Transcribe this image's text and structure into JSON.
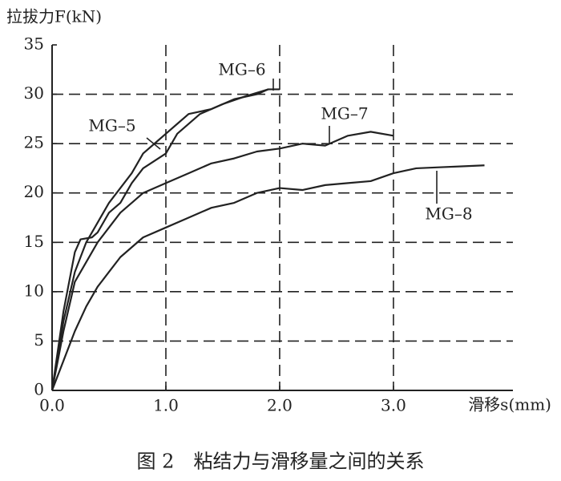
{
  "chart_data": {
    "type": "line",
    "ylabel": "拉拔力F(kN)",
    "xlabel": "滑移s(mm)",
    "caption": "图 2　粘结力与滑移量之间的关系",
    "xlim": [
      0,
      4.05
    ],
    "ylim": [
      0,
      35
    ],
    "xticks": [
      {
        "value": 0,
        "label": "0.0"
      },
      {
        "value": 1,
        "label": "1.0"
      },
      {
        "value": 2,
        "label": "2.0"
      },
      {
        "value": 3,
        "label": "3.0"
      }
    ],
    "yticks": [
      0,
      5,
      10,
      15,
      20,
      25,
      30,
      35
    ],
    "grid": true,
    "series": [
      {
        "name": "MG–5",
        "color": "#222222",
        "x": [
          0,
          0.1,
          0.2,
          0.3,
          0.4,
          0.5,
          0.6,
          0.7,
          0.8,
          0.9,
          1.0,
          1.1,
          1.2,
          1.4,
          1.6,
          1.8,
          1.9
        ],
        "values": [
          0,
          7,
          12,
          15,
          17,
          19,
          20.5,
          22,
          24,
          25,
          26,
          27,
          28,
          28.5,
          29.5,
          30,
          30.5
        ]
      },
      {
        "name": "MG–6",
        "color": "#222222",
        "x": [
          0,
          0.1,
          0.2,
          0.25,
          0.35,
          0.4,
          0.5,
          0.6,
          0.7,
          0.8,
          1.0,
          1.1,
          1.3,
          1.5,
          1.7,
          1.9,
          2.0
        ],
        "values": [
          0,
          8,
          14,
          15.3,
          15.5,
          16,
          18,
          19,
          21,
          22.5,
          24,
          26,
          28,
          29,
          29.8,
          30.5,
          30.5
        ]
      },
      {
        "name": "MG–7",
        "color": "#222222",
        "x": [
          0,
          0.1,
          0.2,
          0.3,
          0.4,
          0.5,
          0.6,
          0.7,
          0.8,
          1.0,
          1.2,
          1.4,
          1.6,
          1.8,
          2.0,
          2.2,
          2.4,
          2.6,
          2.8,
          3.0
        ],
        "values": [
          0,
          6,
          11,
          13,
          15,
          16.5,
          18,
          19,
          20,
          21,
          22,
          23,
          23.5,
          24.2,
          24.5,
          25,
          24.8,
          25.8,
          26.2,
          25.8
        ]
      },
      {
        "name": "MG–8",
        "color": "#222222",
        "x": [
          0,
          0.1,
          0.2,
          0.3,
          0.4,
          0.5,
          0.6,
          0.8,
          1.0,
          1.2,
          1.4,
          1.6,
          1.8,
          2.0,
          2.2,
          2.4,
          2.6,
          2.8,
          3.0,
          3.2,
          3.4,
          3.6,
          3.8
        ],
        "values": [
          0,
          3,
          6,
          8.5,
          10.5,
          12,
          13.5,
          15.5,
          16.5,
          17.5,
          18.5,
          19,
          20,
          20.5,
          20.3,
          20.8,
          21,
          21.2,
          22,
          22.5,
          22.6,
          22.7,
          22.8
        ]
      }
    ]
  }
}
